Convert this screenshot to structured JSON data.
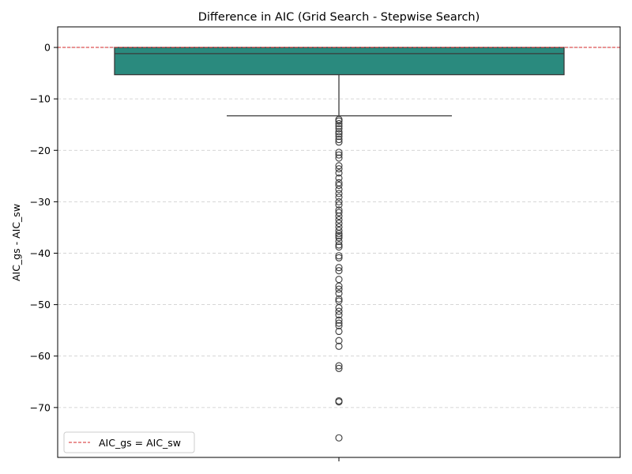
{
  "chart_data": {
    "type": "box",
    "title": "Difference in AIC (Grid Search - Stepwise Search)",
    "xlabel": "",
    "ylabel": "AIC_gs - AIC_sw",
    "ylim": [
      -79.7,
      4.0
    ],
    "yticks": [
      0,
      -10,
      -20,
      -30,
      -40,
      -50,
      -60,
      -70
    ],
    "ytick_labels": [
      "0",
      "−10",
      "−20",
      "−30",
      "−40",
      "−50",
      "−60",
      "−70"
    ],
    "grid": {
      "y": true,
      "x": false,
      "style": "dashed",
      "color": "#c8c8c8"
    },
    "box": {
      "q3": 0.0,
      "median": -1.2,
      "q1": -5.3,
      "whisker_high": 0.0,
      "whisker_low": -13.3,
      "color": "#2a8a7e"
    },
    "outliers": [
      -14.0,
      -14.3,
      -14.8,
      -15.3,
      -15.8,
      -16.4,
      -16.8,
      -17.3,
      -17.9,
      -18.4,
      -20.4,
      -20.9,
      -21.5,
      -23.0,
      -23.6,
      -24.4,
      -25.4,
      -26.3,
      -26.8,
      -27.6,
      -28.4,
      -29.1,
      -30.0,
      -30.6,
      -31.6,
      -32.1,
      -32.8,
      -33.5,
      -34.2,
      -34.9,
      -35.6,
      -36.2,
      -36.6,
      -37.0,
      -37.7,
      -38.4,
      -38.8,
      -40.5,
      -40.9,
      -42.8,
      -43.4,
      -45.1,
      -46.4,
      -47.0,
      -47.8,
      -48.9,
      -49.3,
      -50.6,
      -51.3,
      -52.0,
      -53.0,
      -53.6,
      -54.1,
      -55.2,
      -57.0,
      -58.1,
      -61.9,
      -62.4,
      -68.7,
      -68.9,
      -75.9
    ],
    "reference_line": {
      "y": 0,
      "color": "#d62728",
      "style": "dashed",
      "label": "AIC_gs = AIC_sw"
    },
    "legend": {
      "position": "lower-left",
      "entries": [
        "AIC_gs = AIC_sw"
      ]
    }
  }
}
